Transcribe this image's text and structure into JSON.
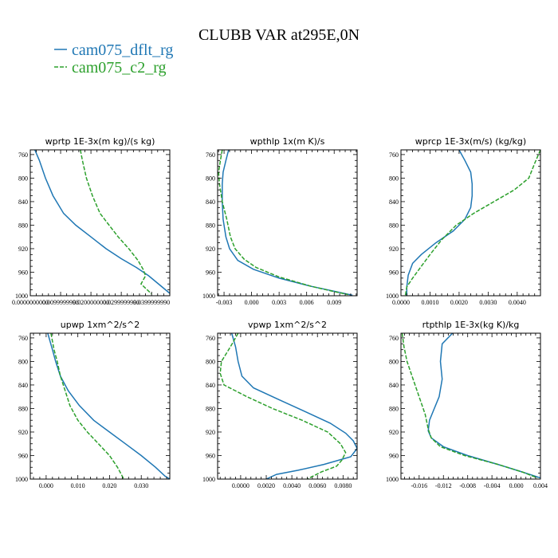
{
  "title": "CLUBB VAR at295E,0N",
  "legend": [
    {
      "label": "cam075_dflt_rg",
      "color": "#1f77b4",
      "dash": ""
    },
    {
      "label": "cam075_c2_rg",
      "color": "#2ca02c",
      "dash": "5,2"
    }
  ],
  "chart_data": [
    {
      "type": "line",
      "title": "wprtp",
      "units": "1E-3x(m kg)/(s kg)",
      "xlim": [
        0,
        0.046
      ],
      "ylim": [
        1000,
        752
      ],
      "xticks": [
        0,
        0.01,
        0.02,
        0.03,
        0.04
      ],
      "xtick_labels": [
        "0.0000000000",
        "0.0099999998",
        "0.0200000000",
        "0.0299999990",
        "0.0399999990"
      ],
      "yticks": [
        760,
        800,
        840,
        880,
        920,
        960,
        1000
      ],
      "series": [
        {
          "name": "cam075_dflt_rg",
          "points": [
            [
              0.0015,
              752
            ],
            [
              0.003,
              770
            ],
            [
              0.005,
              800
            ],
            [
              0.0075,
              830
            ],
            [
              0.011,
              860
            ],
            [
              0.015,
              880
            ],
            [
              0.02,
              900
            ],
            [
              0.025,
              920
            ],
            [
              0.03,
              937
            ],
            [
              0.035,
              952
            ],
            [
              0.039,
              966
            ],
            [
              0.043,
              983
            ],
            [
              0.046,
              996
            ]
          ]
        },
        {
          "name": "cam075_c2_rg",
          "points": [
            [
              0.0165,
              752
            ],
            [
              0.0172,
              770
            ],
            [
              0.0185,
              800
            ],
            [
              0.0205,
              830
            ],
            [
              0.023,
              860
            ],
            [
              0.026,
              880
            ],
            [
              0.029,
              900
            ],
            [
              0.0325,
              920
            ],
            [
              0.0355,
              940
            ],
            [
              0.0372,
              955
            ],
            [
              0.038,
              966
            ],
            [
              0.0365,
              980
            ],
            [
              0.04,
              997
            ]
          ]
        }
      ]
    },
    {
      "type": "line",
      "title": "wpthlp",
      "units": "1x(m K)/s",
      "xlim": [
        -0.0037,
        0.0115
      ],
      "ylim": [
        1000,
        752
      ],
      "xticks": [
        -0.003,
        0,
        0.003,
        0.006,
        0.009
      ],
      "xtick_labels": [
        "-0.003",
        "0.000",
        "0.003",
        "0.006",
        "0.009"
      ],
      "yticks": [
        760,
        800,
        840,
        880,
        920,
        960,
        1000
      ],
      "series": [
        {
          "name": "cam075_dflt_rg",
          "points": [
            [
              -0.0025,
              752
            ],
            [
              -0.0028,
              770
            ],
            [
              -0.0031,
              790
            ],
            [
              -0.0032,
              810
            ],
            [
              -0.0032,
              840
            ],
            [
              -0.0031,
              870
            ],
            [
              -0.0028,
              900
            ],
            [
              -0.0024,
              920
            ],
            [
              -0.0015,
              940
            ],
            [
              0.0002,
              955
            ],
            [
              0.003,
              970
            ],
            [
              0.0065,
              984
            ],
            [
              0.0092,
              993
            ],
            [
              0.011,
              999
            ]
          ]
        },
        {
          "name": "cam075_c2_rg",
          "points": [
            [
              -0.0032,
              752
            ],
            [
              -0.0034,
              770
            ],
            [
              -0.0036,
              790
            ],
            [
              -0.0035,
              810
            ],
            [
              -0.0032,
              840
            ],
            [
              -0.0027,
              870
            ],
            [
              -0.0023,
              900
            ],
            [
              -0.0018,
              920
            ],
            [
              -0.0008,
              938
            ],
            [
              0.0005,
              952
            ],
            [
              0.003,
              968
            ],
            [
              0.0065,
              984
            ],
            [
              0.009,
              993
            ],
            [
              0.0105,
              998
            ]
          ]
        }
      ]
    },
    {
      "type": "line",
      "title": "wprcp",
      "units": "1E-3x(m/s) (kg/kg)",
      "xlim": [
        0,
        0.0048
      ],
      "ylim": [
        1000,
        752
      ],
      "xticks": [
        0,
        0.001,
        0.002,
        0.003,
        0.004
      ],
      "xtick_labels": [
        "0.0000",
        "0.0010",
        "0.0020",
        "0.0030",
        "0.0040"
      ],
      "yticks": [
        760,
        800,
        840,
        880,
        920,
        960,
        1000
      ],
      "series": [
        {
          "name": "cam075_dflt_rg",
          "points": [
            [
              0.002,
              752
            ],
            [
              0.0022,
              770
            ],
            [
              0.0024,
              790
            ],
            [
              0.00245,
              810
            ],
            [
              0.00245,
              830
            ],
            [
              0.0024,
              850
            ],
            [
              0.0022,
              870
            ],
            [
              0.0018,
              890
            ],
            [
              0.0012,
              910
            ],
            [
              0.0007,
              930
            ],
            [
              0.0004,
              945
            ],
            [
              0.00025,
              965
            ],
            [
              0.0002,
              985
            ],
            [
              0.0002,
              1000
            ]
          ]
        },
        {
          "name": "cam075_c2_rg",
          "points": [
            [
              0.0048,
              752
            ],
            [
              0.0046,
              775
            ],
            [
              0.0044,
              800
            ],
            [
              0.0039,
              820
            ],
            [
              0.0032,
              840
            ],
            [
              0.0025,
              860
            ],
            [
              0.0019,
              880
            ],
            [
              0.0014,
              905
            ],
            [
              0.001,
              930
            ],
            [
              0.0007,
              950
            ],
            [
              0.0004,
              970
            ],
            [
              0.0002,
              985
            ],
            [
              0.00015,
              1000
            ]
          ]
        }
      ]
    },
    {
      "type": "line",
      "title": "upwp",
      "units": "1xm^2/s^2",
      "xlim": [
        -0.005,
        0.039
      ],
      "ylim": [
        1000,
        752
      ],
      "xticks": [
        0,
        0.01,
        0.02,
        0.03
      ],
      "xtick_labels": [
        "0.000",
        "0.010",
        "0.020",
        "0.030"
      ],
      "yticks": [
        760,
        800,
        840,
        880,
        920,
        960,
        1000
      ],
      "series": [
        {
          "name": "cam075_dflt_rg",
          "points": [
            [
              0.0005,
              752
            ],
            [
              0.002,
              780
            ],
            [
              0.003,
              800
            ],
            [
              0.0045,
              825
            ],
            [
              0.007,
              850
            ],
            [
              0.0105,
              875
            ],
            [
              0.015,
              900
            ],
            [
              0.02,
              920
            ],
            [
              0.025,
              940
            ],
            [
              0.03,
              960
            ],
            [
              0.0345,
              980
            ],
            [
              0.0375,
              995
            ],
            [
              0.039,
              1000
            ]
          ]
        },
        {
          "name": "cam075_c2_rg",
          "points": [
            [
              0.0015,
              752
            ],
            [
              0.0025,
              780
            ],
            [
              0.0035,
              800
            ],
            [
              0.0045,
              825
            ],
            [
              0.006,
              850
            ],
            [
              0.0075,
              875
            ],
            [
              0.01,
              900
            ],
            [
              0.013,
              920
            ],
            [
              0.0165,
              940
            ],
            [
              0.02,
              960
            ],
            [
              0.0225,
              980
            ],
            [
              0.0245,
              1000
            ]
          ]
        }
      ]
    },
    {
      "type": "line",
      "title": "vpwp",
      "units": "1xm^2/s^2",
      "xlim": [
        -0.0018,
        0.0091
      ],
      "ylim": [
        1000,
        752
      ],
      "xticks": [
        0,
        0.002,
        0.004,
        0.006,
        0.008
      ],
      "xtick_labels": [
        "0.0000",
        "0.0020",
        "0.0040",
        "0.0060",
        "0.0080"
      ],
      "yticks": [
        760,
        800,
        840,
        880,
        920,
        960,
        1000
      ],
      "series": [
        {
          "name": "cam075_dflt_rg",
          "points": [
            [
              -0.0007,
              752
            ],
            [
              -0.0004,
              775
            ],
            [
              -0.0002,
              800
            ],
            [
              0.0001,
              825
            ],
            [
              0.001,
              845
            ],
            [
              0.003,
              865
            ],
            [
              0.005,
              885
            ],
            [
              0.007,
              905
            ],
            [
              0.0082,
              922
            ],
            [
              0.0088,
              935
            ],
            [
              0.0091,
              948
            ],
            [
              0.0086,
              962
            ],
            [
              0.0065,
              975
            ],
            [
              0.0045,
              985
            ],
            [
              0.0028,
              992
            ],
            [
              0.002,
              1000
            ]
          ]
        },
        {
          "name": "cam075_c2_rg",
          "points": [
            [
              -0.0002,
              752
            ],
            [
              -0.0008,
              775
            ],
            [
              -0.0015,
              800
            ],
            [
              -0.0016,
              820
            ],
            [
              -0.0013,
              840
            ],
            [
              0.0005,
              860
            ],
            [
              0.0025,
              880
            ],
            [
              0.0048,
              900
            ],
            [
              0.0068,
              920
            ],
            [
              0.0078,
              940
            ],
            [
              0.0082,
              955
            ],
            [
              0.0079,
              968
            ],
            [
              0.0075,
              978
            ],
            [
              0.0063,
              988
            ],
            [
              0.0052,
              1000
            ]
          ]
        }
      ]
    },
    {
      "type": "line",
      "title": "rtpthlp",
      "units": "1E-3x(kg K)/kg",
      "xlim": [
        -0.019,
        0.004
      ],
      "ylim": [
        1000,
        752
      ],
      "xticks": [
        -0.016,
        -0.012,
        -0.008,
        -0.004,
        0,
        0.004
      ],
      "xtick_labels": [
        "-0.016",
        "-0.012",
        "-0.008",
        "-0.004",
        "0.000",
        "0.004"
      ],
      "yticks": [
        760,
        800,
        840,
        880,
        920,
        960,
        1000
      ],
      "series": [
        {
          "name": "cam075_dflt_rg",
          "points": [
            [
              -0.0105,
              752
            ],
            [
              -0.0122,
              770
            ],
            [
              -0.0125,
              800
            ],
            [
              -0.0122,
              830
            ],
            [
              -0.0127,
              860
            ],
            [
              -0.0135,
              880
            ],
            [
              -0.0143,
              900
            ],
            [
              -0.0145,
              918
            ],
            [
              -0.014,
              930
            ],
            [
              -0.012,
              945
            ],
            [
              -0.008,
              960
            ],
            [
              -0.003,
              975
            ],
            [
              0.001,
              988
            ],
            [
              0.004,
              998
            ]
          ]
        },
        {
          "name": "cam075_c2_rg",
          "points": [
            [
              -0.0188,
              752
            ],
            [
              -0.0185,
              775
            ],
            [
              -0.018,
              800
            ],
            [
              -0.017,
              830
            ],
            [
              -0.016,
              860
            ],
            [
              -0.015,
              890
            ],
            [
              -0.0145,
              915
            ],
            [
              -0.014,
              930
            ],
            [
              -0.0125,
              945
            ],
            [
              -0.0085,
              960
            ],
            [
              -0.003,
              975
            ],
            [
              0.001,
              988
            ],
            [
              0.0035,
              998
            ]
          ]
        }
      ]
    }
  ]
}
